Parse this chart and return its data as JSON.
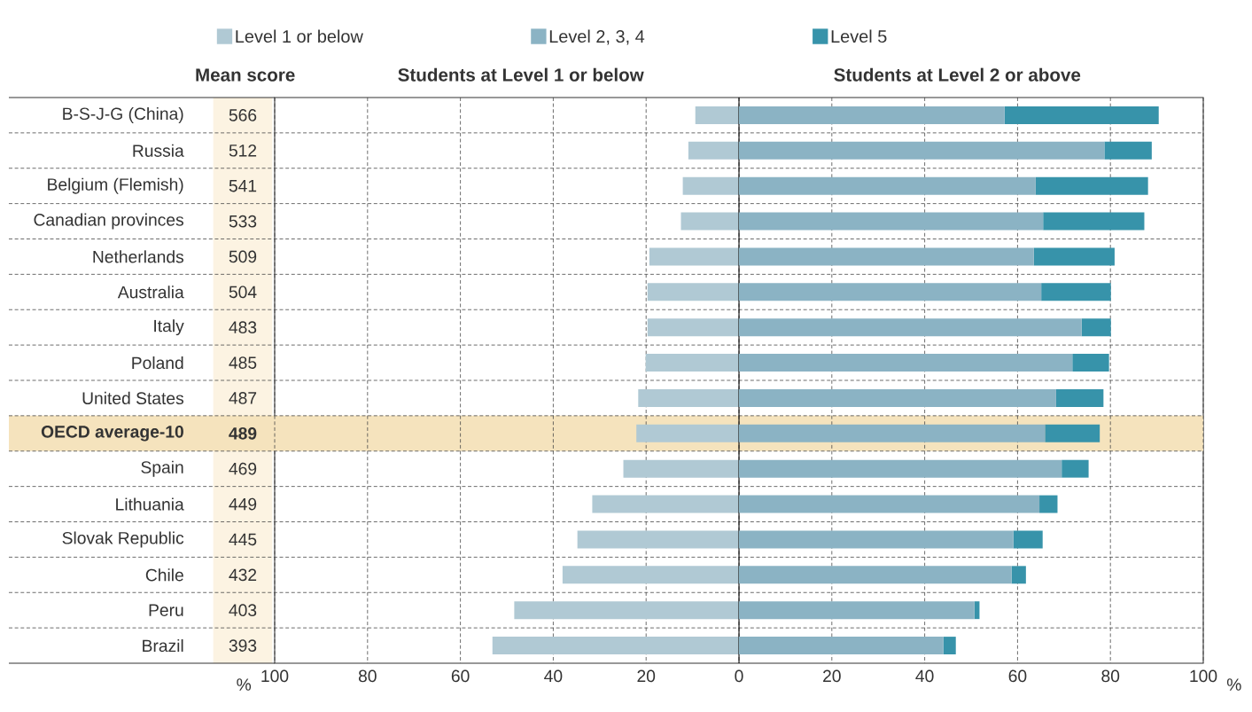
{
  "chart_data": {
    "type": "bar",
    "orientation": "horizontal",
    "stacked": true,
    "categories": [
      "B-S-J-G (China)",
      "Russia",
      "Belgium (Flemish)",
      "Canadian provinces",
      "Netherlands",
      "Australia",
      "Italy",
      "Poland",
      "United States",
      "OECD average-10",
      "Spain",
      "Lithuania",
      "Slovak Republic",
      "Chile",
      "Peru",
      "Brazil"
    ],
    "series": [
      {
        "name": "Level 1 or below",
        "color": "#b0c9d4",
        "values": [
          -9.4,
          -10.9,
          -12.1,
          -12.5,
          -19.3,
          -19.7,
          -19.7,
          -20.1,
          -21.7,
          -22.1,
          -24.9,
          -31.6,
          -34.8,
          -38.0,
          -48.4,
          -53.1
        ]
      },
      {
        "name": "Level 2, 3, 4",
        "color": "#8bb3c4",
        "values": [
          57.2,
          78.7,
          63.9,
          65.5,
          63.5,
          65.1,
          73.8,
          71.8,
          68.3,
          65.9,
          69.5,
          64.7,
          59.1,
          58.7,
          50.7,
          44.0
        ]
      },
      {
        "name": "Level 5",
        "color": "#3793aa",
        "values": [
          33.2,
          10.2,
          24.2,
          21.8,
          17.4,
          15.0,
          6.3,
          7.9,
          10.2,
          11.8,
          5.8,
          3.9,
          6.3,
          3.1,
          1.1,
          2.7
        ]
      }
    ],
    "xlim": [
      -100,
      100
    ],
    "xticks": [
      {
        "value": -100,
        "label": "100"
      },
      {
        "value": -80,
        "label": "80"
      },
      {
        "value": -60,
        "label": "60"
      },
      {
        "value": -40,
        "label": "40"
      },
      {
        "value": -20,
        "label": "20"
      },
      0,
      20,
      40,
      60,
      80,
      100
    ],
    "grid": true,
    "legend": "top",
    "bands": [
      {
        "axis": "y",
        "from": "OECD average-10",
        "to": "OECD average-10",
        "color": "#f5e3bd"
      }
    ],
    "annotations": [
      "Mean score",
      "566",
      "512",
      "541",
      "533",
      "509",
      "504",
      "483",
      "485",
      "487",
      "489",
      "469",
      "449",
      "445",
      "432",
      "403",
      "393",
      "Students at Level 1 or below",
      "Students at Level 2 or above",
      "%",
      "%"
    ]
  }
}
